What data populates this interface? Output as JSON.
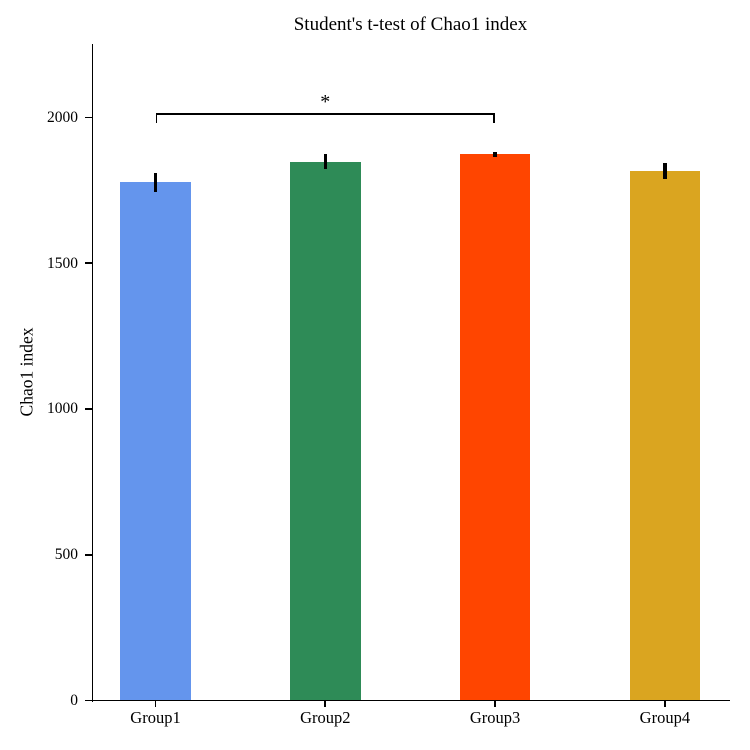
{
  "figure": {
    "background": "#ffffff",
    "text_color": "#000000"
  },
  "chart_data": {
    "type": "bar",
    "title": "Student's t-test of Chao1 index",
    "ylabel": "Chao1 index",
    "xlabel": "",
    "categories": [
      "Group1",
      "Group2",
      "Group3",
      "Group4"
    ],
    "values": [
      1777,
      1848,
      1873,
      1817
    ],
    "errors": [
      32,
      25,
      7,
      27
    ],
    "bar_colors": [
      "#6495ED",
      "#2E8B57",
      "#FF4500",
      "#DAA520"
    ],
    "error_bar_color": "#000000",
    "axis_color": "#000000",
    "ylim": [
      0,
      2252
    ],
    "yticks": [
      0,
      500,
      1000,
      1500,
      2000
    ],
    "ytick_labels": [
      "0",
      "500",
      "1000",
      "1500",
      "2000"
    ],
    "grid": false,
    "legend": false,
    "significance": {
      "from": "Group1",
      "to": "Group3",
      "label": "*",
      "y_value": 2014
    }
  }
}
